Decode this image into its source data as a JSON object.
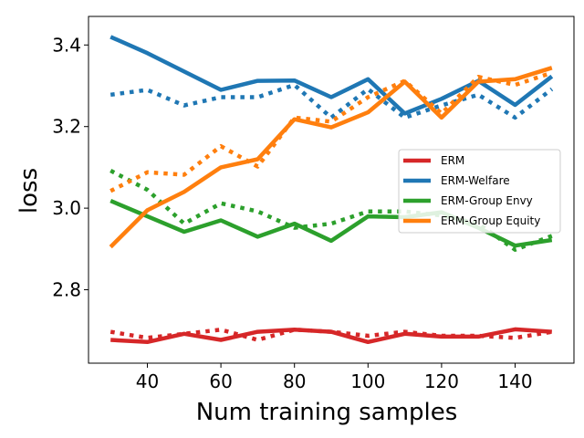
{
  "chart_data": {
    "type": "line",
    "xlabel": "Num training samples",
    "ylabel": "loss",
    "xlim": [
      24,
      156
    ],
    "ylim": [
      2.62,
      3.47
    ],
    "xticks": [
      40,
      60,
      80,
      100,
      120,
      140
    ],
    "yticks": [
      2.8,
      3.0,
      3.2,
      3.4
    ],
    "x": [
      30,
      40,
      50,
      60,
      70,
      80,
      90,
      100,
      110,
      120,
      130,
      140,
      150
    ],
    "legend_position": "center-right",
    "grid": false,
    "series": [
      {
        "name": "ERM",
        "color": "#d62728",
        "solid": [
          2.677,
          2.672,
          2.692,
          2.677,
          2.697,
          2.702,
          2.697,
          2.672,
          2.692,
          2.685,
          2.685,
          2.703,
          2.697
        ],
        "dotted": [
          2.697,
          2.682,
          2.692,
          2.702,
          2.677,
          2.702,
          2.697,
          2.687,
          2.697,
          2.687,
          2.687,
          2.682,
          2.697
        ]
      },
      {
        "name": "ERM-Welfare",
        "color": "#1f77b4",
        "solid": [
          3.42,
          3.38,
          3.335,
          3.29,
          3.312,
          3.313,
          3.272,
          3.316,
          3.232,
          3.268,
          3.312,
          3.253,
          3.323
        ],
        "dotted": [
          3.278,
          3.29,
          3.252,
          3.272,
          3.272,
          3.302,
          3.222,
          3.292,
          3.222,
          3.252,
          3.278,
          3.222,
          3.292
        ]
      },
      {
        "name": "ERM-Group Envy",
        "color": "#2ca02c",
        "solid": [
          3.018,
          2.98,
          2.942,
          2.97,
          2.93,
          2.962,
          2.92,
          2.98,
          2.978,
          2.99,
          2.952,
          2.908,
          2.922
        ],
        "dotted": [
          3.092,
          3.045,
          2.962,
          3.012,
          2.992,
          2.952,
          2.962,
          2.992,
          2.992,
          2.982,
          2.962,
          2.898,
          2.932
        ]
      },
      {
        "name": "ERM-Group Equity",
        "color": "#ff7f0e",
        "solid": [
          2.905,
          2.995,
          3.04,
          3.1,
          3.12,
          3.218,
          3.198,
          3.235,
          3.31,
          3.222,
          3.31,
          3.316,
          3.344
        ],
        "dotted": [
          3.042,
          3.088,
          3.082,
          3.152,
          3.102,
          3.222,
          3.212,
          3.272,
          3.312,
          3.232,
          3.322,
          3.302,
          3.332
        ]
      }
    ]
  }
}
